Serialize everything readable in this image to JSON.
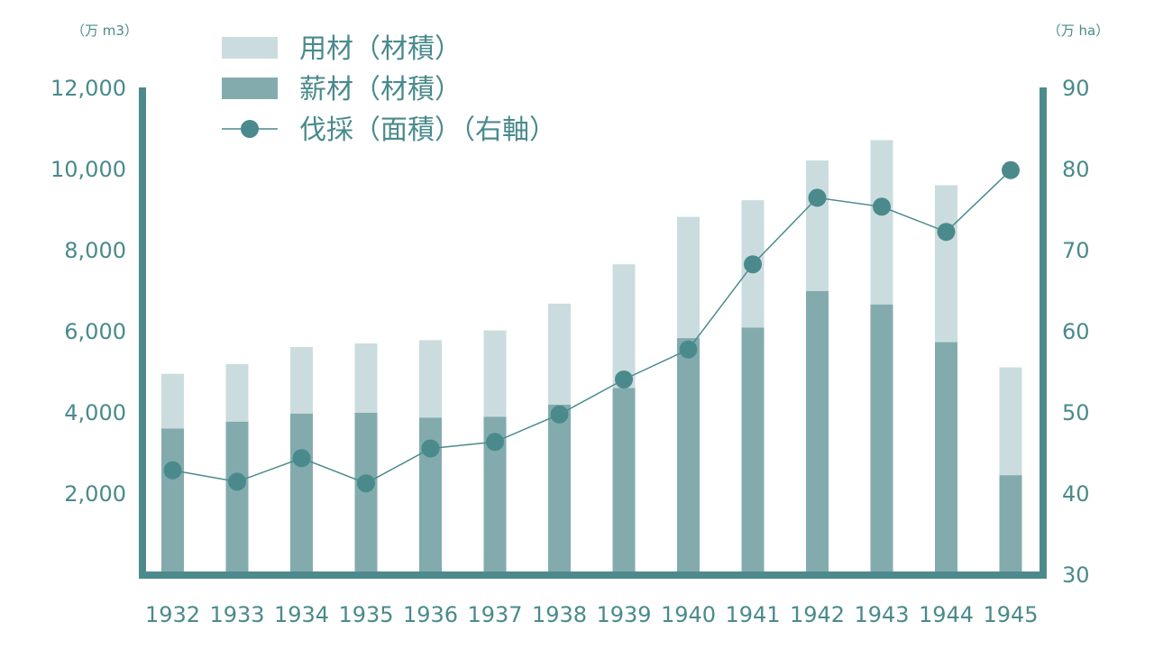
{
  "chart_data": {
    "type": "bar",
    "stacked": true,
    "categories": [
      "1932",
      "1933",
      "1934",
      "1935",
      "1936",
      "1937",
      "1938",
      "1939",
      "1940",
      "1941",
      "1942",
      "1943",
      "1944",
      "1945"
    ],
    "series": [
      {
        "name": "薪材（材積）",
        "kind": "bar",
        "axis": "left",
        "color": "#83abae",
        "values": [
          3590,
          3760,
          3960,
          3980,
          3860,
          3880,
          4180,
          4590,
          5820,
          6080,
          6980,
          6650,
          5720,
          2440
        ]
      },
      {
        "name": "用材（材積）",
        "kind": "bar",
        "axis": "left",
        "color": "#cbdcdf",
        "values": [
          1350,
          1420,
          1640,
          1710,
          1910,
          2130,
          2490,
          3050,
          2990,
          3140,
          3220,
          4050,
          3870,
          2660
        ]
      },
      {
        "name": "伐採（面積）（右軸）",
        "kind": "line",
        "axis": "right",
        "color": "#4a8a8c",
        "values": [
          42.8,
          41.4,
          44.3,
          41.2,
          45.5,
          46.3,
          49.7,
          54.0,
          57.7,
          68.2,
          76.4,
          75.3,
          72.2,
          79.8
        ]
      }
    ],
    "y_left": {
      "unit": "（万 m3）",
      "ylim": [
        0,
        12000
      ],
      "ticks": [
        "2,000",
        "4,000",
        "6,000",
        "8,000",
        "10,000",
        "12,000"
      ]
    },
    "y_right": {
      "unit": "（万 ha）",
      "ylim": [
        30,
        90
      ],
      "ticks": [
        "30",
        "40",
        "50",
        "60",
        "70",
        "80",
        "90"
      ]
    },
    "legend_order": [
      "用材（材積）",
      "薪材（材積）",
      "伐採（面積）（右軸）"
    ],
    "legend_position": "top-left",
    "grid": false,
    "axis_color": "#4e8a8c",
    "text_color": "#4a8a8c"
  }
}
